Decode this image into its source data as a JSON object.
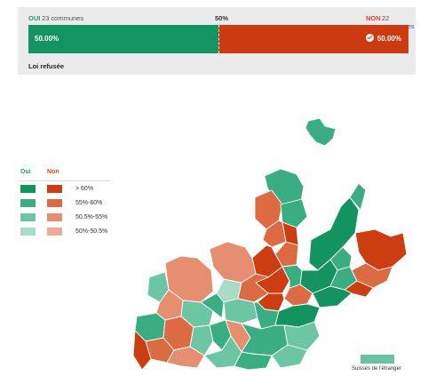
{
  "header": {
    "oui_label": "OUI",
    "oui_count": "23 communes",
    "mid_label": "50%",
    "non_label": "NON",
    "non_count": "22 communes",
    "oui_percent_text": "50.00%",
    "non_percent_text": "50.00%",
    "oui_share": 0.5,
    "result_text": "Loi refusée",
    "colors": {
      "oui": "#149462",
      "non": "#cc3a11",
      "panel": "#ebebeb"
    }
  },
  "legend": {
    "oui_header": "Oui",
    "non_header": "Non",
    "rows": [
      {
        "label": "> 60%",
        "oui_color": "#13935f",
        "non_color": "#cd3d12"
      },
      {
        "label": "55%-60%",
        "oui_color": "#3aad82",
        "non_color": "#dc6a43"
      },
      {
        "label": "50.5%-55%",
        "oui_color": "#6cc5a3",
        "non_color": "#e68f70"
      },
      {
        "label": "50%-50.5%",
        "oui_color": "#a9dcc6",
        "non_color": "#eeac94"
      }
    ]
  },
  "abroad": {
    "label": "Suisses de l'étranger",
    "color": "#66c4a2"
  },
  "map": {
    "region_count": 45
  }
}
